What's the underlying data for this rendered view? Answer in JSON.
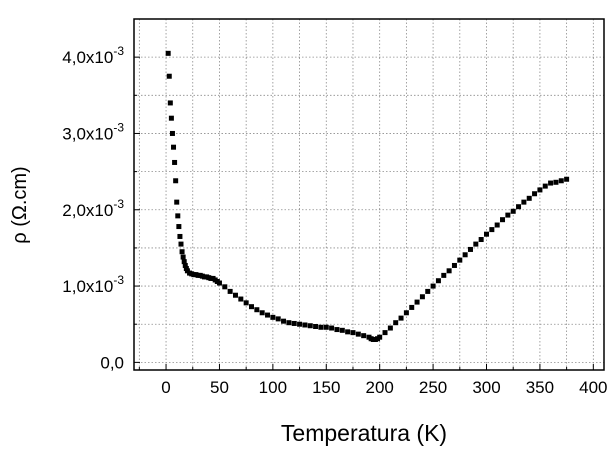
{
  "chart_data": {
    "type": "scatter",
    "title": "",
    "xlabel": "Temperatura (K)",
    "ylabel": "ρ (Ω.cm)",
    "xlim": [
      -30,
      410
    ],
    "ylim": [
      -0.0001,
      0.0045
    ],
    "xticks": [
      {
        "value": 0,
        "label": "0"
      },
      {
        "value": 50,
        "label": "50"
      },
      {
        "value": 100,
        "label": "100"
      },
      {
        "value": 150,
        "label": "150"
      },
      {
        "value": 200,
        "label": "200"
      },
      {
        "value": 250,
        "label": "250"
      },
      {
        "value": 300,
        "label": "300"
      },
      {
        "value": 350,
        "label": "350"
      },
      {
        "value": 400,
        "label": "400"
      }
    ],
    "yticks": [
      {
        "value": 0,
        "mantissa": "0,0",
        "exp": ""
      },
      {
        "value": 0.001,
        "mantissa": "1,0x10",
        "exp": "-3"
      },
      {
        "value": 0.002,
        "mantissa": "2,0x10",
        "exp": "-3"
      },
      {
        "value": 0.003,
        "mantissa": "3,0x10",
        "exp": "-3"
      },
      {
        "value": 0.004,
        "mantissa": "4,0x10",
        "exp": "-3"
      }
    ],
    "grid": true,
    "marker": "square",
    "color": "#000000",
    "series": [
      {
        "x": [
          2,
          3,
          4,
          5,
          6,
          7,
          8,
          9,
          10,
          11,
          12,
          13,
          14,
          15,
          16,
          17,
          18,
          19,
          20,
          22,
          24,
          26,
          28,
          30,
          32,
          34,
          36,
          38,
          40,
          42,
          44,
          46,
          48,
          50,
          55,
          60,
          65,
          70,
          75,
          80,
          85,
          90,
          95,
          100,
          105,
          110,
          115,
          120,
          125,
          130,
          135,
          140,
          145,
          150,
          155,
          160,
          165,
          170,
          175,
          180,
          185,
          190,
          192,
          194,
          196,
          198,
          200,
          205,
          210,
          215,
          220,
          225,
          230,
          235,
          240,
          245,
          250,
          255,
          260,
          265,
          270,
          275,
          280,
          285,
          290,
          295,
          300,
          305,
          310,
          315,
          320,
          325,
          330,
          335,
          340,
          345,
          350,
          355,
          360,
          365,
          370,
          375
        ],
        "y": [
          0.00405,
          0.00375,
          0.0034,
          0.0032,
          0.003,
          0.00282,
          0.00262,
          0.00238,
          0.0021,
          0.00192,
          0.00178,
          0.00165,
          0.00155,
          0.00145,
          0.00138,
          0.00132,
          0.00127,
          0.00123,
          0.0012,
          0.00117,
          0.00116,
          0.00115,
          0.00115,
          0.00114,
          0.00114,
          0.00113,
          0.00112,
          0.00112,
          0.00111,
          0.0011,
          0.0011,
          0.00108,
          0.00106,
          0.00104,
          0.00099,
          0.00093,
          0.00088,
          0.00083,
          0.00078,
          0.00073,
          0.00069,
          0.00065,
          0.00062,
          0.00059,
          0.00057,
          0.00054,
          0.00052,
          0.00051,
          0.0005,
          0.00049,
          0.00048,
          0.00047,
          0.00046,
          0.00046,
          0.00045,
          0.00043,
          0.00042,
          0.0004,
          0.00039,
          0.00037,
          0.00035,
          0.00033,
          0.00031,
          0.0003,
          0.0003,
          0.00031,
          0.00033,
          0.00039,
          0.00045,
          0.00052,
          0.00058,
          0.00065,
          0.00072,
          0.00079,
          0.00086,
          0.00093,
          0.001,
          0.00107,
          0.00114,
          0.0012,
          0.00127,
          0.00134,
          0.00141,
          0.00148,
          0.00155,
          0.00161,
          0.00168,
          0.00174,
          0.0018,
          0.00187,
          0.00193,
          0.00198,
          0.00204,
          0.0021,
          0.00215,
          0.00221,
          0.00226,
          0.00231,
          0.00235,
          0.00236,
          0.00238,
          0.0024
        ]
      }
    ]
  }
}
